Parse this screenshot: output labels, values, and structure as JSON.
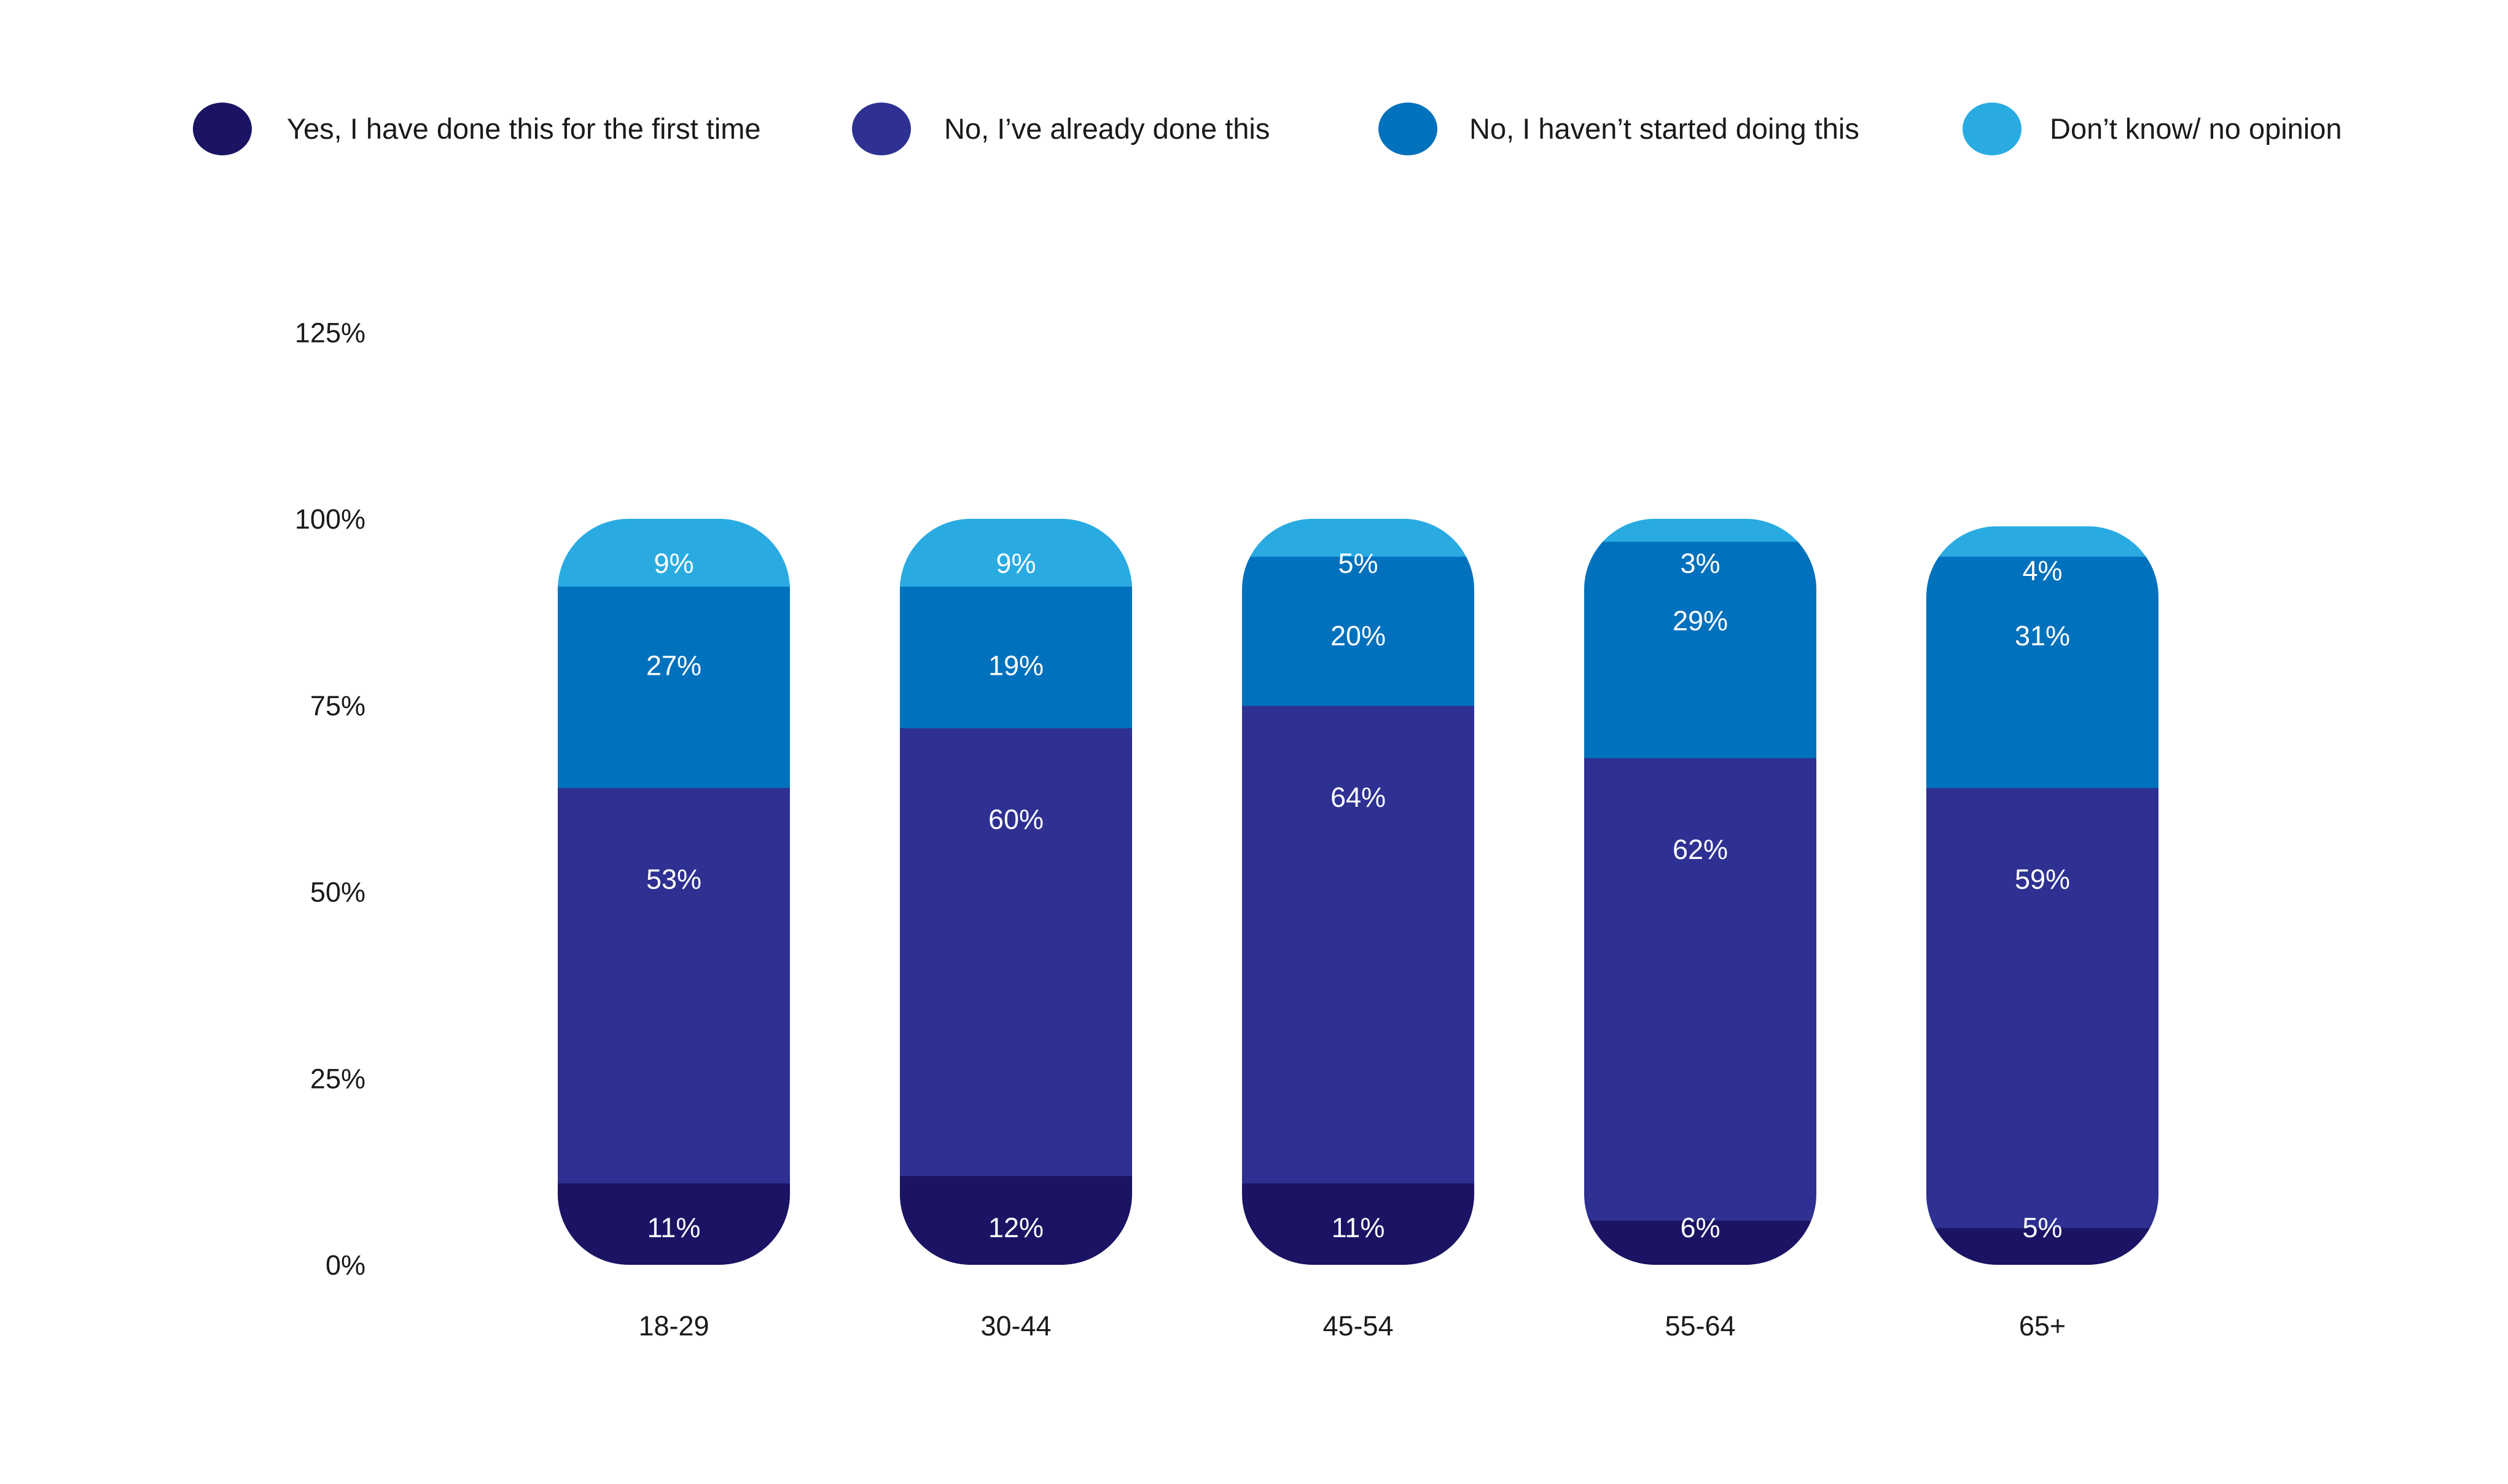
{
  "chart_data": {
    "type": "bar",
    "stacked": true,
    "categories": [
      "18-29",
      "30-44",
      "45-54",
      "55-64",
      "65+"
    ],
    "series": [
      {
        "name": "Yes, I have done this for the first time",
        "color": "#1b1464",
        "values": [
          11,
          12,
          11,
          6,
          5
        ],
        "labels": [
          "11%",
          "12%",
          "11%",
          "6%",
          "5%"
        ]
      },
      {
        "name": "No, I’ve already done this",
        "color": "#2e3192",
        "values": [
          53,
          60,
          64,
          62,
          59
        ],
        "labels": [
          "53%",
          "60%",
          "64%",
          "62%",
          "59%"
        ]
      },
      {
        "name": "No, I haven’t started doing this",
        "color": "#0071bc",
        "values": [
          27,
          19,
          20,
          29,
          31
        ],
        "labels": [
          "27%",
          "19%",
          "20%",
          "29%",
          "31%"
        ]
      },
      {
        "name": "Don’t know/ no opinion",
        "color": "#29abe2",
        "values": [
          9,
          9,
          5,
          3,
          4
        ],
        "labels": [
          "9%",
          "9%",
          "5%",
          "3%",
          "4%"
        ]
      }
    ],
    "yticks": [
      "0%",
      "25%",
      "50%",
      "75%",
      "100%",
      "125%"
    ],
    "ylim": [
      0,
      125
    ],
    "grid": false,
    "legend_position": "top"
  }
}
